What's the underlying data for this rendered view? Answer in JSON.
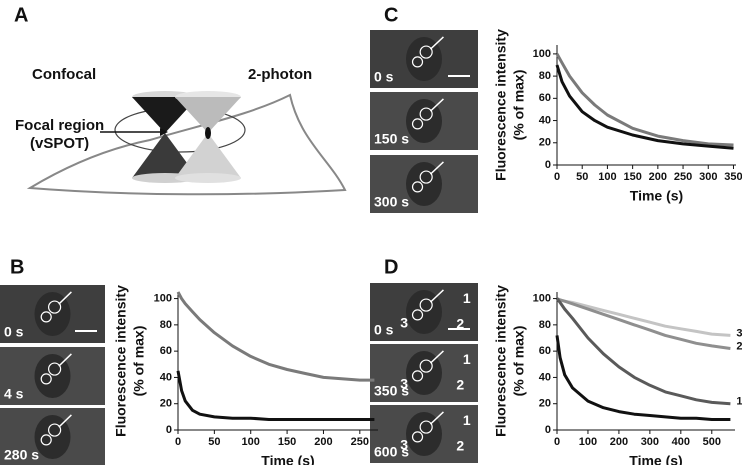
{
  "panel_labels": [
    "A",
    "B",
    "C",
    "D"
  ],
  "diagram": {
    "left": "Confocal",
    "right": "2-photon",
    "focal": [
      "Focal region",
      "(vSPOT)"
    ]
  },
  "images": {
    "B": [
      "0 s",
      "4 s",
      "280 s"
    ],
    "C": [
      "0 s",
      "150 s",
      "300 s"
    ],
    "D": [
      "0 s",
      "350 s",
      "600 s"
    ]
  },
  "spot_labels": [
    "1",
    "2",
    "3"
  ],
  "chart_data": [
    {
      "type": "line",
      "xlabel": "Time (s)",
      "ylabel": [
        "Fluorescence intensity",
        "(% of max)"
      ],
      "x": [
        0,
        5,
        10,
        20,
        30,
        50,
        75,
        100,
        125,
        150,
        175,
        200,
        225,
        250,
        270
      ],
      "series": [
        {
          "color": "#7a7a7a",
          "values": [
            105,
            100,
            96,
            90,
            84,
            74,
            64,
            56,
            50,
            46,
            43,
            40,
            39,
            38,
            38
          ]
        },
        {
          "color": "#111111",
          "values": [
            45,
            30,
            22,
            15,
            12,
            10,
            9,
            9,
            8,
            8,
            8,
            8,
            8,
            8,
            8
          ]
        }
      ],
      "xlim": [
        0,
        275
      ],
      "ylim": [
        0,
        105
      ],
      "xticks": [
        0,
        50,
        100,
        150,
        200,
        250
      ],
      "yticks": [
        0,
        20,
        40,
        60,
        80,
        100
      ]
    },
    {
      "type": "line",
      "xlabel": "Time (s)",
      "ylabel": [
        "Fluorescence intensity",
        "(% of max)"
      ],
      "x": [
        0,
        10,
        25,
        50,
        75,
        100,
        150,
        200,
        250,
        300,
        350
      ],
      "series": [
        {
          "color": "#7a7a7a",
          "values": [
            100,
            92,
            80,
            65,
            54,
            45,
            33,
            26,
            22,
            19,
            18
          ]
        },
        {
          "color": "#111111",
          "values": [
            90,
            75,
            62,
            48,
            40,
            34,
            27,
            22,
            19,
            17,
            15
          ]
        }
      ],
      "xlim": [
        0,
        355
      ],
      "ylim": [
        0,
        108
      ],
      "xticks": [
        0,
        50,
        100,
        150,
        200,
        250,
        300,
        350
      ],
      "yticks": [
        0,
        20,
        40,
        60,
        80,
        100
      ]
    },
    {
      "type": "line",
      "xlabel": "Time (s)",
      "ylabel": [
        "Fluorescence intensity",
        "(% of max)"
      ],
      "x": [
        0,
        10,
        25,
        50,
        100,
        150,
        200,
        250,
        300,
        350,
        400,
        450,
        500,
        560
      ],
      "series": [
        {
          "name": "3",
          "color": "#c4c4c4",
          "values": [
            100,
            99,
            98,
            97,
            94,
            91,
            88,
            85,
            82,
            79,
            77,
            75,
            73,
            72
          ]
        },
        {
          "name": "2",
          "color": "#8f8f8f",
          "values": [
            100,
            99,
            98,
            96,
            92,
            88,
            84,
            80,
            76,
            72,
            69,
            66,
            64,
            62
          ]
        },
        {
          "name": "1",
          "color": "#5a5a5a",
          "values": [
            100,
            97,
            92,
            85,
            70,
            58,
            48,
            40,
            34,
            29,
            26,
            23,
            21,
            20
          ]
        },
        {
          "color": "#111111",
          "values": [
            72,
            55,
            42,
            32,
            22,
            17,
            14,
            12,
            11,
            10,
            9,
            9,
            8,
            8
          ]
        }
      ],
      "xlim": [
        0,
        575
      ],
      "ylim": [
        0,
        105
      ],
      "xticks": [
        0,
        100,
        200,
        300,
        400,
        500
      ],
      "yticks": [
        0,
        20,
        40,
        60,
        80,
        100
      ]
    }
  ]
}
